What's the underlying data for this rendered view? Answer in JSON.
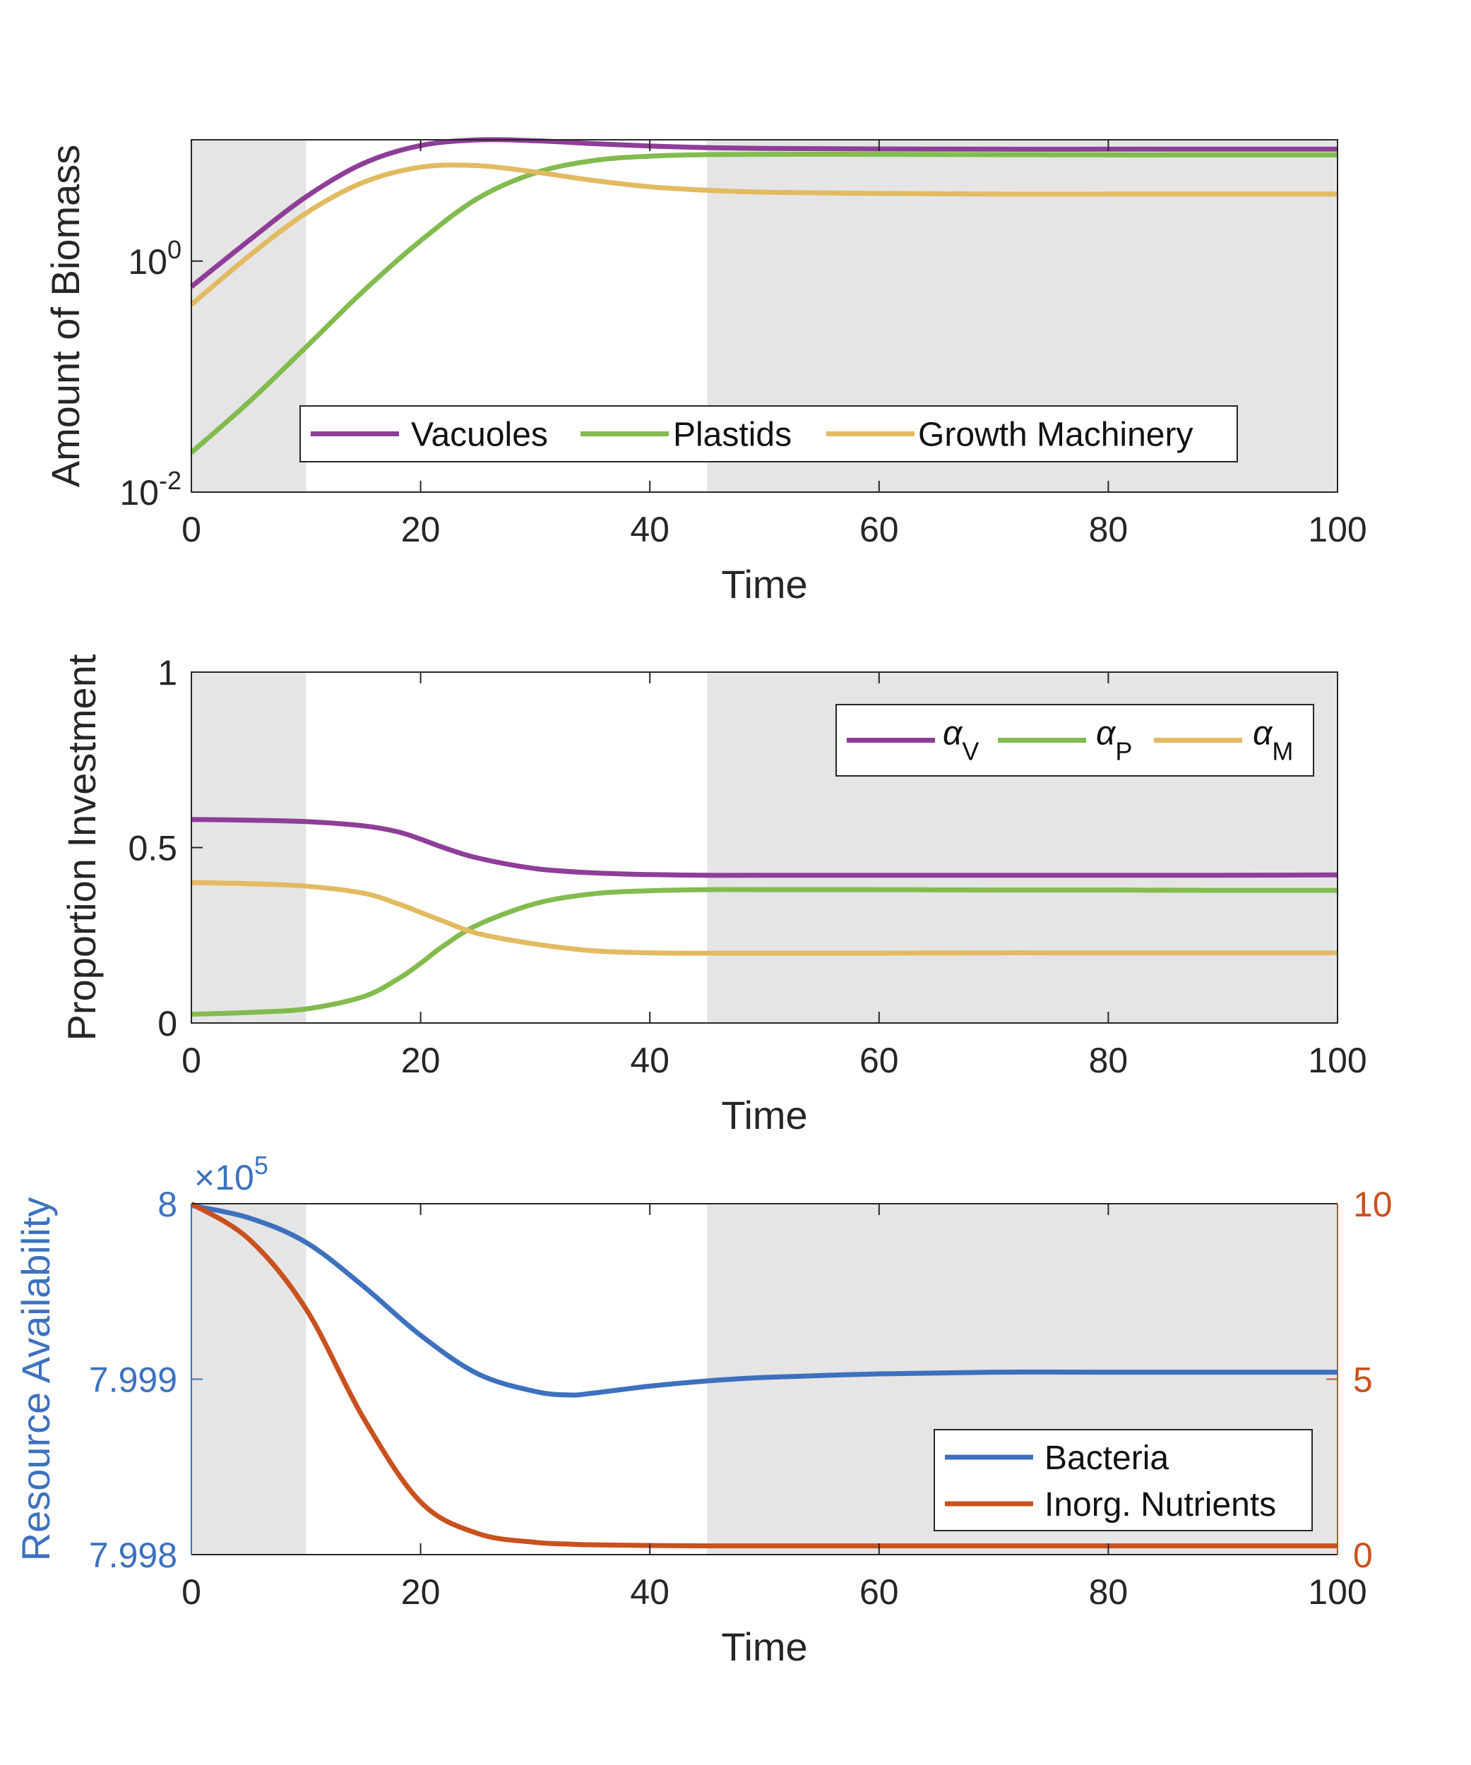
{
  "colors": {
    "purple": "#8E3E98",
    "green": "#83BB4F",
    "gold": "#E2BA62",
    "blue": "#3D71BE",
    "orange": "#C9511E",
    "shade": "#E5E5E5",
    "axis": "#262626"
  },
  "chart_data": [
    {
      "type": "line",
      "xlabel": "Time",
      "ylabel": "Amount of Biomass",
      "xlim": [
        0,
        100
      ],
      "ylim_log10": [
        -2,
        1.05
      ],
      "yscale": "log",
      "xticks": [
        "0",
        "20",
        "40",
        "60",
        "80",
        "100"
      ],
      "yticks": [
        {
          "base": "10",
          "exp": "-2",
          "value": 0.01
        },
        {
          "base": "10",
          "exp": "0",
          "value": 1
        }
      ],
      "shaded_x_ranges": [
        [
          0,
          10
        ],
        [
          45,
          100
        ]
      ],
      "legend_position": "bottom-center, horizontal",
      "x": [
        0,
        5,
        10,
        15,
        20,
        25,
        30,
        35,
        40,
        45,
        50,
        60,
        70,
        80,
        90,
        100
      ],
      "series": [
        {
          "name": "Vacuoles",
          "color_key": "purple",
          "values": [
            0.6,
            1.5,
            3.6,
            7.0,
            10.0,
            11.2,
            11.0,
            10.4,
            9.9,
            9.6,
            9.45,
            9.35,
            9.3,
            9.3,
            9.3,
            9.3
          ]
        },
        {
          "name": "Plastids",
          "color_key": "green",
          "values": [
            0.022,
            0.06,
            0.18,
            0.55,
            1.5,
            3.5,
            5.8,
            7.4,
            8.1,
            8.35,
            8.4,
            8.4,
            8.35,
            8.3,
            8.3,
            8.3
          ]
        },
        {
          "name": "Growth Machinery",
          "color_key": "gold",
          "values": [
            0.42,
            1.1,
            2.6,
            4.8,
            6.5,
            6.7,
            5.9,
            5.0,
            4.4,
            4.1,
            3.95,
            3.85,
            3.8,
            3.8,
            3.8,
            3.8
          ]
        }
      ]
    },
    {
      "type": "line",
      "xlabel": "Time",
      "ylabel": "Proportion Investment",
      "xlim": [
        0,
        100
      ],
      "ylim": [
        0,
        1
      ],
      "xticks": [
        "0",
        "20",
        "40",
        "60",
        "80",
        "100"
      ],
      "yticks": [
        {
          "label": "0",
          "value": 0
        },
        {
          "label": "0.5",
          "value": 0.5
        },
        {
          "label": "1",
          "value": 1
        }
      ],
      "shaded_x_ranges": [
        [
          0,
          10
        ],
        [
          45,
          100
        ]
      ],
      "legend_position": "top-right, horizontal",
      "x": [
        0,
        5,
        10,
        15,
        18,
        20,
        22,
        25,
        30,
        35,
        40,
        45,
        50,
        60,
        70,
        80,
        90,
        100
      ],
      "series": [
        {
          "name": "α",
          "subscript": "V",
          "color_key": "purple",
          "values": [
            0.58,
            0.578,
            0.574,
            0.562,
            0.545,
            0.524,
            0.5,
            0.47,
            0.44,
            0.428,
            0.423,
            0.421,
            0.421,
            0.421,
            0.421,
            0.421,
            0.421,
            0.422
          ]
        },
        {
          "name": "α",
          "subscript": "P",
          "color_key": "green",
          "values": [
            0.025,
            0.03,
            0.04,
            0.075,
            0.125,
            0.17,
            0.22,
            0.28,
            0.34,
            0.368,
            0.377,
            0.38,
            0.38,
            0.38,
            0.379,
            0.379,
            0.378,
            0.378
          ]
        },
        {
          "name": "α",
          "subscript": "M",
          "color_key": "gold",
          "values": [
            0.4,
            0.397,
            0.39,
            0.37,
            0.34,
            0.315,
            0.29,
            0.255,
            0.225,
            0.206,
            0.2,
            0.199,
            0.199,
            0.199,
            0.2,
            0.2,
            0.2,
            0.2
          ]
        }
      ]
    },
    {
      "type": "line",
      "xlabel": "Time",
      "ylabel": "Resource Availability",
      "xlim": [
        0,
        100
      ],
      "ylim_left": [
        7.998,
        8.0
      ],
      "ylim_right": [
        0,
        10
      ],
      "left_axis_exponent": {
        "prefix": "×10",
        "exp": "5"
      },
      "xticks": [
        "0",
        "20",
        "40",
        "60",
        "80",
        "100"
      ],
      "yticks_left": [
        {
          "label": "7.998",
          "value": 7.998
        },
        {
          "label": "7.999",
          "value": 7.999
        },
        {
          "label": "8",
          "value": 8.0
        }
      ],
      "yticks_right": [
        {
          "label": "0",
          "value": 0
        },
        {
          "label": "5",
          "value": 5
        },
        {
          "label": "10",
          "value": 10
        }
      ],
      "shaded_x_ranges": [
        [
          0,
          10
        ],
        [
          45,
          100
        ]
      ],
      "legend_position": "bottom-right, vertical",
      "x": [
        0,
        5,
        10,
        15,
        20,
        25,
        30,
        33,
        35,
        40,
        45,
        50,
        60,
        70,
        80,
        90,
        100
      ],
      "series": [
        {
          "name": "Bacteria",
          "color_key": "blue",
          "axis": "left",
          "values": [
            7.99999,
            7.99992,
            7.99978,
            7.99953,
            7.99925,
            7.99903,
            7.99893,
            7.99891,
            7.99892,
            7.99896,
            7.99899,
            7.99901,
            7.99903,
            7.99904,
            7.99904,
            7.99904,
            7.99904
          ]
        },
        {
          "name": "Inorg. Nutrients",
          "color_key": "orange",
          "axis": "right",
          "values": [
            10.0,
            9.0,
            7.0,
            3.9,
            1.5,
            0.6,
            0.35,
            0.3,
            0.28,
            0.26,
            0.25,
            0.25,
            0.25,
            0.25,
            0.25,
            0.25,
            0.25
          ]
        }
      ]
    }
  ]
}
